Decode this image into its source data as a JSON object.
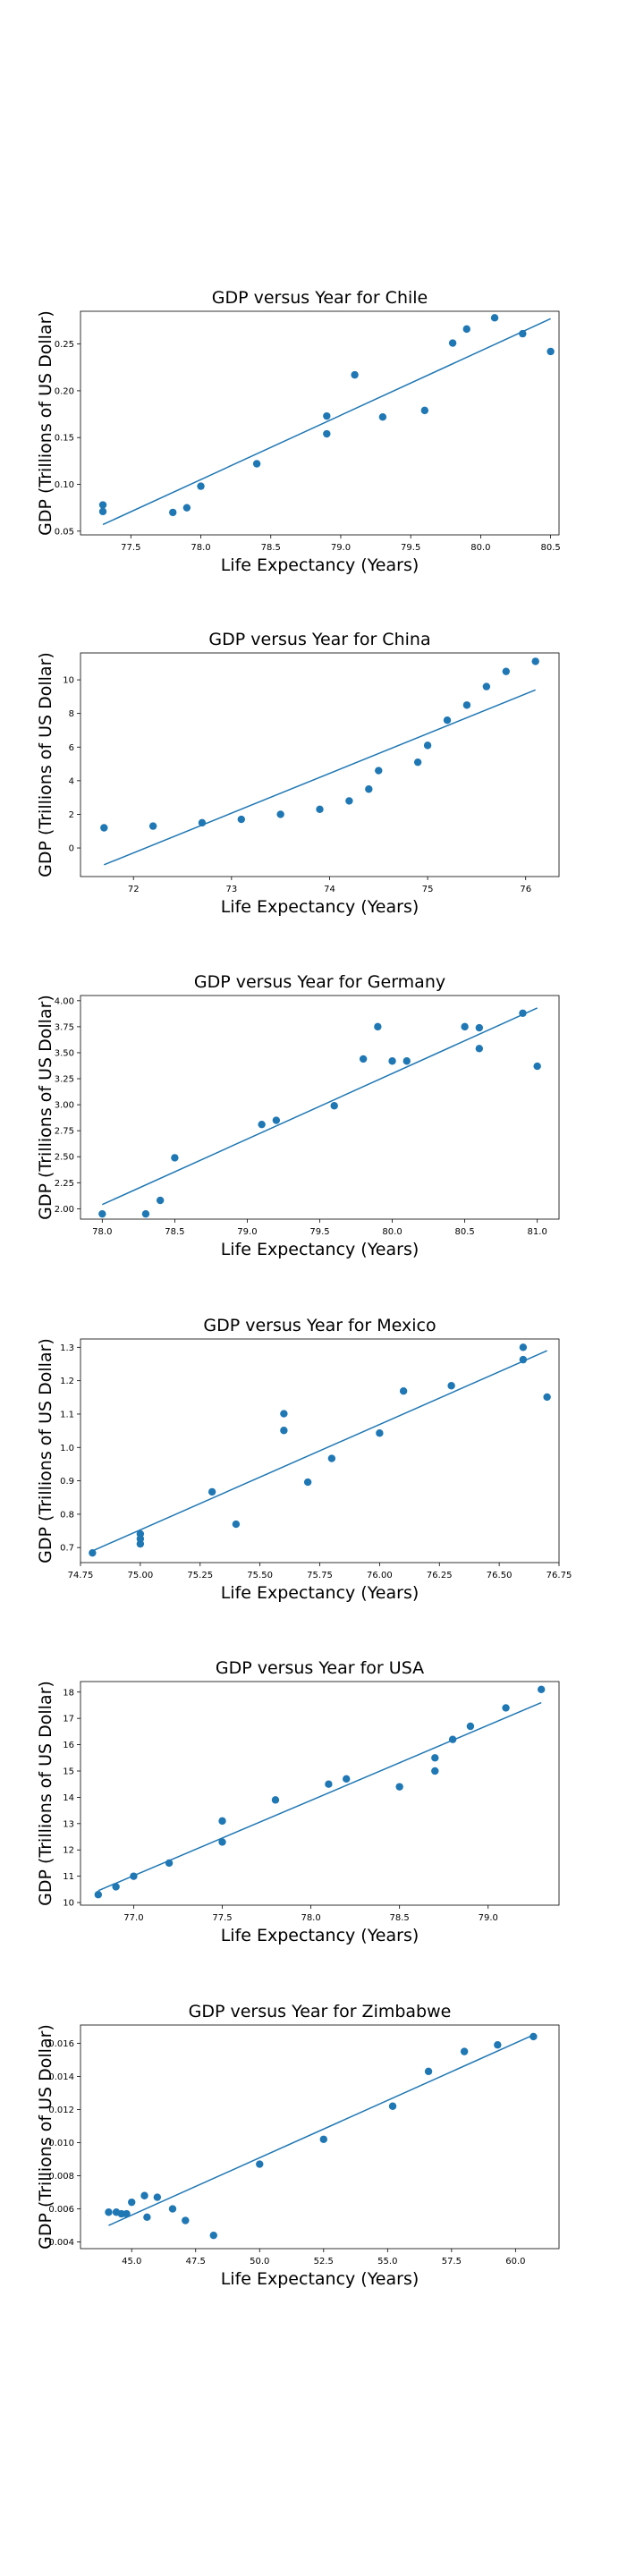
{
  "figure": {
    "point_color": "#1f77b4",
    "line_color": "#1f77b4"
  },
  "chart_data": [
    {
      "type": "scatter",
      "title": "GDP versus Year for Chile",
      "xlabel": "Life Expectancy (Years)",
      "ylabel": "GDP (Trillions of US Dollar)",
      "xlim": [
        77.14,
        80.56
      ],
      "ylim": [
        0.046,
        0.285
      ],
      "xticks": [
        "77.5",
        "78.0",
        "78.5",
        "79.0",
        "79.5",
        "80.0",
        "80.5"
      ],
      "xtick_values": [
        77.5,
        78.0,
        78.5,
        79.0,
        79.5,
        80.0,
        80.5
      ],
      "yticks": [
        "0.05",
        "0.10",
        "0.15",
        "0.20",
        "0.25"
      ],
      "ytick_values": [
        0.05,
        0.1,
        0.15,
        0.2,
        0.25
      ],
      "x": [
        77.3,
        77.3,
        77.8,
        77.9,
        78.0,
        78.4,
        78.9,
        78.9,
        79.1,
        79.3,
        79.6,
        79.8,
        79.9,
        80.1,
        80.3,
        80.5
      ],
      "y": [
        0.078,
        0.071,
        0.07,
        0.075,
        0.098,
        0.122,
        0.173,
        0.154,
        0.217,
        0.172,
        0.179,
        0.251,
        0.266,
        0.278,
        0.261,
        0.242
      ],
      "fit": [
        [
          77.3,
          0.057
        ],
        [
          80.5,
          0.277
        ]
      ]
    },
    {
      "type": "scatter",
      "title": "GDP versus Year for China",
      "xlabel": "Life Expectancy (Years)",
      "ylabel": "GDP (Trillions of US Dollar)",
      "xlim": [
        71.46,
        76.34
      ],
      "ylim": [
        -1.7,
        11.6
      ],
      "xticks": [
        "72",
        "73",
        "74",
        "75",
        "76"
      ],
      "xtick_values": [
        72,
        73,
        74,
        75,
        76
      ],
      "yticks": [
        "0",
        "2",
        "4",
        "6",
        "8",
        "10"
      ],
      "ytick_values": [
        0,
        2,
        4,
        6,
        8,
        10
      ],
      "x": [
        71.7,
        72.2,
        72.7,
        73.1,
        73.5,
        73.9,
        74.2,
        74.4,
        74.5,
        74.9,
        75.0,
        75.2,
        75.4,
        75.6,
        75.8,
        76.1
      ],
      "y": [
        1.2,
        1.3,
        1.5,
        1.7,
        2.0,
        2.3,
        2.8,
        3.5,
        4.6,
        5.1,
        6.1,
        7.6,
        8.5,
        9.6,
        10.5,
        11.1
      ],
      "fit": [
        [
          71.7,
          -1.0
        ],
        [
          76.1,
          9.4
        ]
      ]
    },
    {
      "type": "scatter",
      "title": "GDP versus Year for Germany",
      "xlabel": "Life Expectancy (Years)",
      "ylabel": "GDP (Trillions of US Dollar)",
      "xlim": [
        77.85,
        81.15
      ],
      "ylim": [
        1.9,
        4.05
      ],
      "xticks": [
        "78.0",
        "78.5",
        "79.0",
        "79.5",
        "80.0",
        "80.5",
        "81.0"
      ],
      "xtick_values": [
        78.0,
        78.5,
        79.0,
        79.5,
        80.0,
        80.5,
        81.0
      ],
      "yticks": [
        "2.00",
        "2.25",
        "2.50",
        "2.75",
        "3.00",
        "3.25",
        "3.50",
        "3.75",
        "4.00"
      ],
      "ytick_values": [
        2.0,
        2.25,
        2.5,
        2.75,
        3.0,
        3.25,
        3.5,
        3.75,
        4.0
      ],
      "x": [
        78.0,
        78.3,
        78.4,
        78.5,
        79.1,
        79.2,
        79.6,
        79.8,
        79.9,
        80.0,
        80.1,
        80.5,
        80.6,
        80.6,
        80.9,
        81.0
      ],
      "y": [
        1.95,
        1.95,
        2.08,
        2.49,
        2.81,
        2.85,
        2.99,
        3.44,
        3.75,
        3.42,
        3.42,
        3.75,
        3.74,
        3.54,
        3.88,
        3.37
      ],
      "fit": [
        [
          78.0,
          2.04
        ],
        [
          81.0,
          3.93
        ]
      ]
    },
    {
      "type": "scatter",
      "title": "GDP versus Year for Mexico",
      "xlabel": "Life Expectancy (Years)",
      "ylabel": "GDP (Trillions of US Dollar)",
      "xlim": [
        74.75,
        76.75
      ],
      "ylim": [
        0.655,
        1.325
      ],
      "xticks": [
        "74.75",
        "75.00",
        "75.25",
        "75.50",
        "75.75",
        "76.00",
        "76.25",
        "76.50",
        "76.75"
      ],
      "xtick_values": [
        74.75,
        75.0,
        75.25,
        75.5,
        75.75,
        76.0,
        76.25,
        76.5,
        76.75
      ],
      "yticks": [
        "0.7",
        "0.8",
        "0.9",
        "1.0",
        "1.1",
        "1.2",
        "1.3"
      ],
      "ytick_values": [
        0.7,
        0.8,
        0.9,
        1.0,
        1.1,
        1.2,
        1.3
      ],
      "x": [
        74.8,
        75.0,
        75.0,
        75.0,
        75.3,
        75.4,
        75.6,
        75.6,
        75.7,
        75.8,
        76.0,
        76.1,
        76.3,
        76.6,
        76.6,
        76.7
      ],
      "y": [
        0.684,
        0.711,
        0.726,
        0.741,
        0.867,
        0.77,
        1.051,
        1.101,
        0.896,
        0.967,
        1.043,
        1.169,
        1.185,
        1.3,
        1.263,
        1.151
      ],
      "fit": [
        [
          74.8,
          0.69
        ],
        [
          76.7,
          1.29
        ]
      ]
    },
    {
      "type": "scatter",
      "title": "GDP versus Year for USA",
      "xlabel": "Life Expectancy (Years)",
      "ylabel": "GDP (Trillions of US Dollar)",
      "xlim": [
        76.7,
        79.4
      ],
      "ylim": [
        9.9,
        18.4
      ],
      "xticks": [
        "77.0",
        "77.5",
        "78.0",
        "78.5",
        "79.0"
      ],
      "xtick_values": [
        77.0,
        77.5,
        78.0,
        78.5,
        79.0
      ],
      "yticks": [
        "10",
        "11",
        "12",
        "13",
        "14",
        "15",
        "16",
        "17",
        "18"
      ],
      "ytick_values": [
        10,
        11,
        12,
        13,
        14,
        15,
        16,
        17,
        18
      ],
      "x": [
        76.8,
        76.9,
        77.0,
        77.2,
        77.5,
        77.5,
        77.8,
        78.1,
        78.2,
        78.5,
        78.7,
        78.7,
        78.8,
        78.9,
        79.1,
        79.3
      ],
      "y": [
        10.3,
        10.6,
        11.0,
        11.5,
        12.3,
        13.1,
        13.9,
        14.5,
        14.7,
        14.4,
        15.0,
        15.5,
        16.2,
        16.7,
        17.4,
        18.1
      ],
      "fit": [
        [
          76.8,
          10.45
        ],
        [
          79.3,
          17.6
        ]
      ]
    },
    {
      "type": "scatter",
      "title": "GDP versus Year for Zimbabwe",
      "xlabel": "Life Expectancy (Years)",
      "ylabel": "GDP (Trillions of US Dollar)",
      "xlim": [
        43.0,
        61.7
      ],
      "ylim": [
        0.0036,
        0.0171
      ],
      "xticks": [
        "45.0",
        "47.5",
        "50.0",
        "52.5",
        "55.0",
        "57.5",
        "60.0"
      ],
      "xtick_values": [
        45.0,
        47.5,
        50.0,
        52.5,
        55.0,
        57.5,
        60.0
      ],
      "yticks": [
        "0.004",
        "0.006",
        "0.008",
        "0.010",
        "0.012",
        "0.014",
        "0.016"
      ],
      "ytick_values": [
        0.004,
        0.006,
        0.008,
        0.01,
        0.012,
        0.014,
        0.016
      ],
      "x": [
        44.1,
        44.4,
        44.6,
        44.8,
        45.0,
        45.5,
        45.6,
        46.0,
        46.6,
        47.1,
        48.2,
        50.0,
        52.5,
        55.2,
        56.6,
        58.0,
        59.3,
        60.7
      ],
      "y": [
        0.0058,
        0.0058,
        0.0057,
        0.0057,
        0.0064,
        0.0068,
        0.0055,
        0.0067,
        0.006,
        0.0053,
        0.0044,
        0.0087,
        0.0102,
        0.0122,
        0.0143,
        0.0155,
        0.0159,
        0.0164
      ],
      "fit": [
        [
          44.1,
          0.005
        ],
        [
          60.7,
          0.0165
        ]
      ]
    }
  ]
}
